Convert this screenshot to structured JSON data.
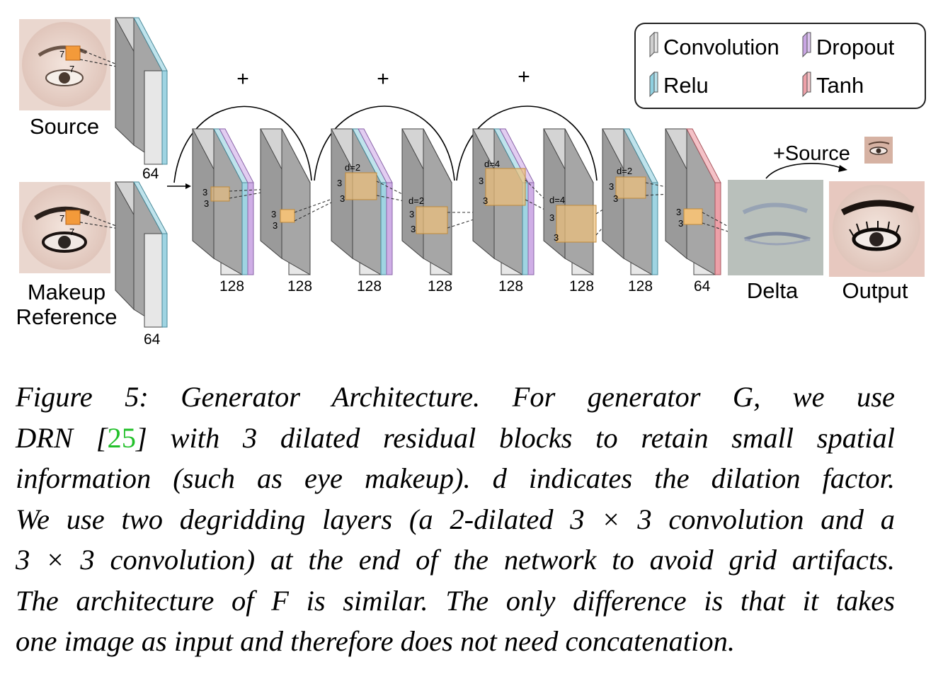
{
  "legend": {
    "items": [
      {
        "label": "Convolution",
        "color": "#cfcfcf"
      },
      {
        "label": "Dropout",
        "color": "#c9a6e3"
      },
      {
        "label": "Relu",
        "color": "#8fd0e0"
      },
      {
        "label": "Tanh",
        "color": "#eda0a8"
      }
    ]
  },
  "inputs": {
    "source_label": "Source",
    "makeup_label_line1": "Makeup",
    "makeup_label_line2": "Reference",
    "source_channels": "64",
    "makeup_channels": "64",
    "kernel_top": "7",
    "kernel_side": "7"
  },
  "plus_signs": [
    "+",
    "+",
    "+"
  ],
  "channels": [
    "128",
    "128",
    "128",
    "128",
    "128",
    "128",
    "128",
    "64"
  ],
  "kernels": {
    "k": "3",
    "d2a": "d=2",
    "d2b": "d=2",
    "d4a": "d=4",
    "d4b": "d=4",
    "d2c": "d=2"
  },
  "outputs": {
    "plus_source": "+Source",
    "delta_label": "Delta",
    "output_label": "Output"
  },
  "caption": {
    "lines": [
      "Figure 5: Generator Architecture. For generator G, we use",
      "with 3 dilated residual blocks to retain small spatial",
      "information (such as eye makeup). d indicates the dilation factor.",
      "We use two degridding layers (a 2-dilated 3 × 3 convolution and a",
      "3 × 3 convolution) at the end of the network to avoid grid artifacts.",
      "The architecture of F is similar. The only difference is that it takes",
      "one image as input and therefore does not need concatenation."
    ],
    "line2_prefix": "DRN [",
    "ref_number": "25",
    "line2_suffix": "]"
  }
}
